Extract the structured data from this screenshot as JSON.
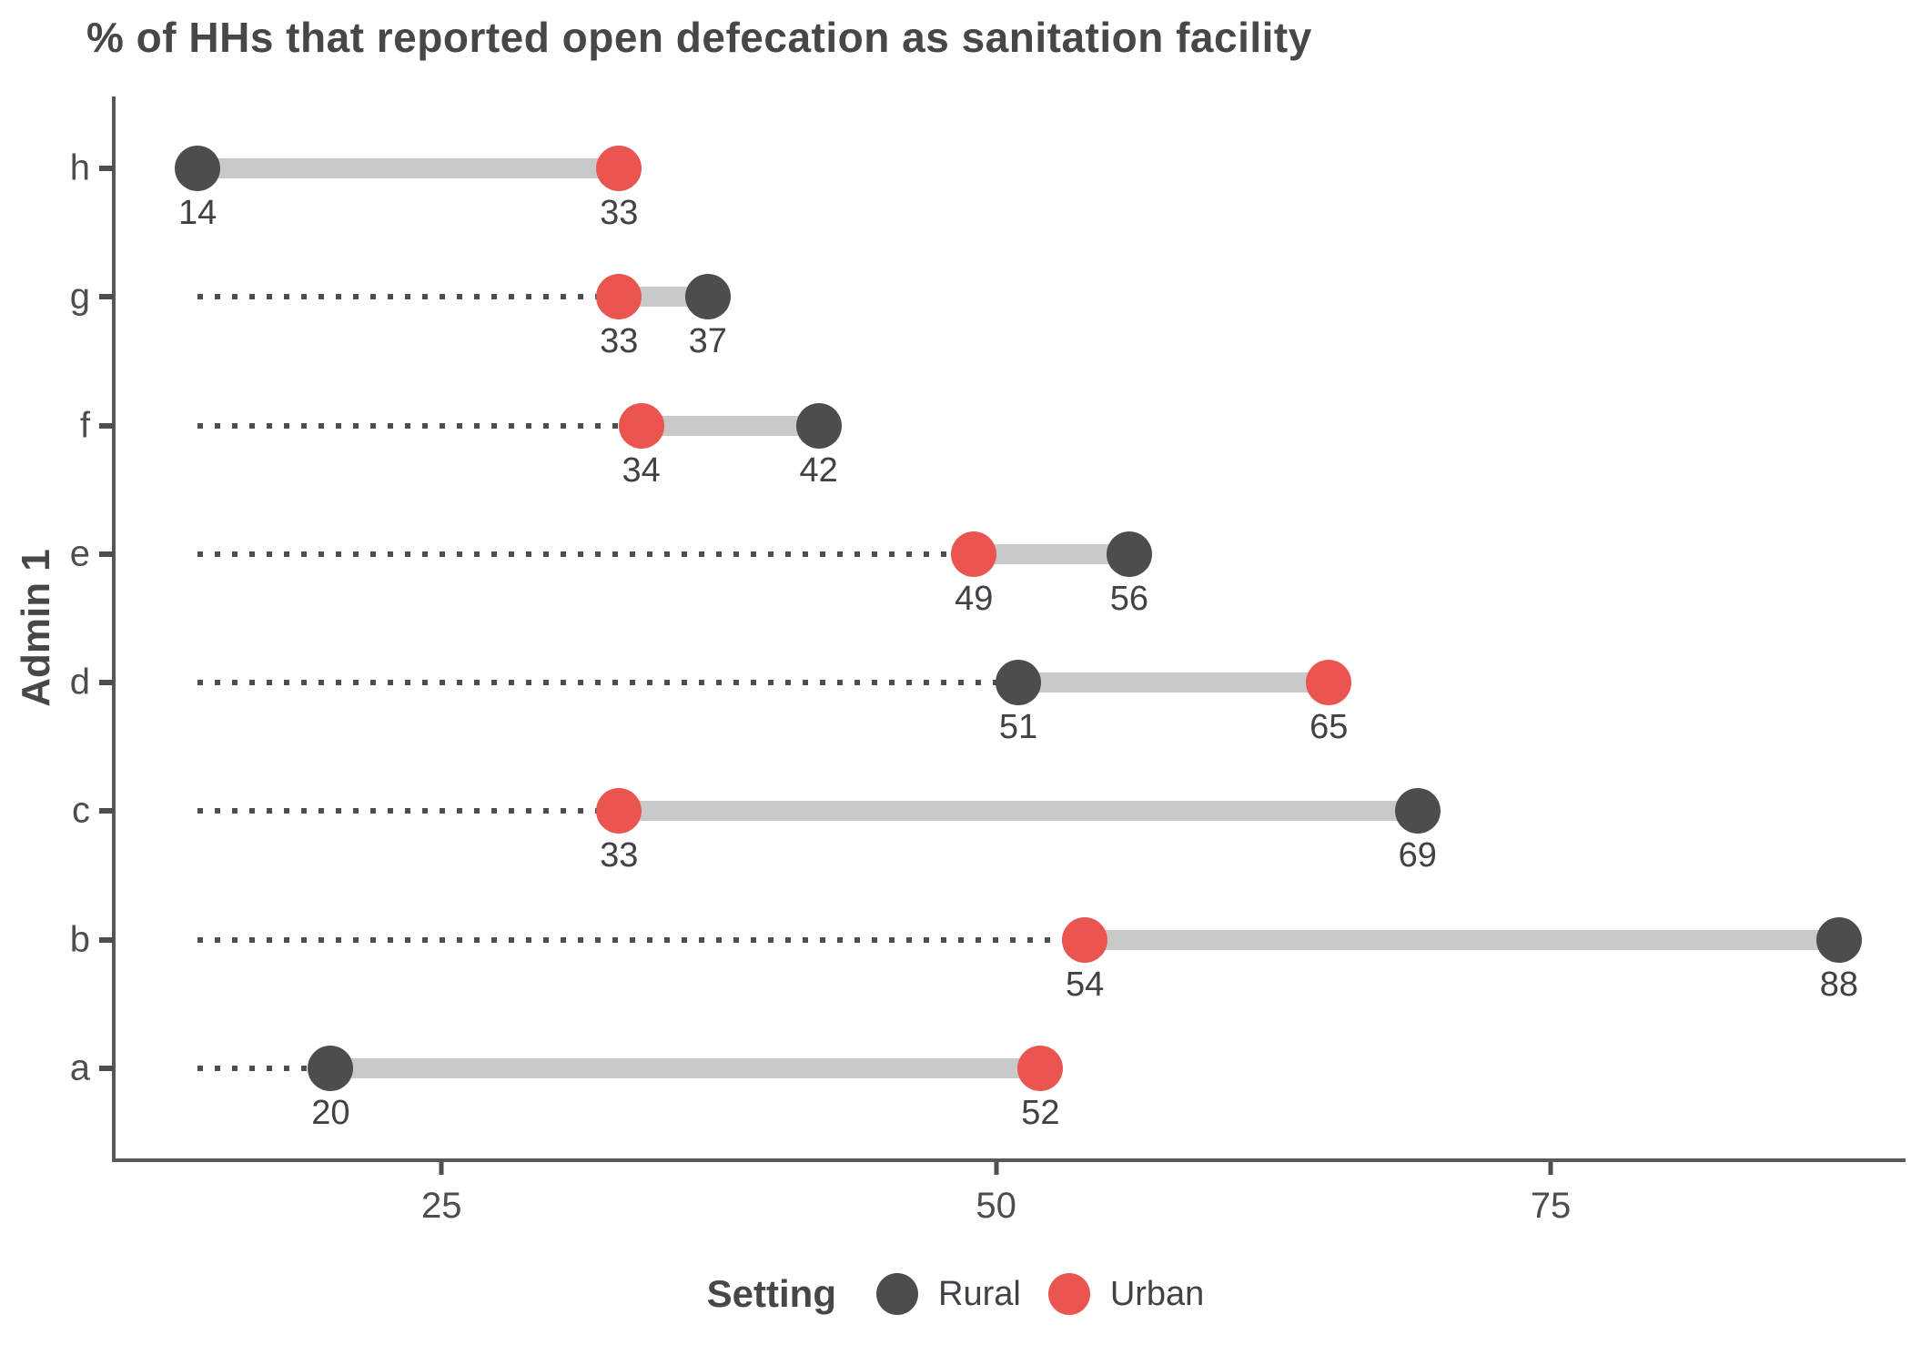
{
  "title": "% of HHs that reported open defecation as sanitation facility",
  "chart_data": {
    "type": "scatter",
    "variant": "dumbbell",
    "title": "% of HHs that reported open defecation as sanitation facility",
    "xlabel": "",
    "ylabel": "Admin 1",
    "categories": [
      "h",
      "g",
      "f",
      "e",
      "d",
      "c",
      "b",
      "a"
    ],
    "series": [
      {
        "name": "Rural",
        "color": "#4d4d4f"
      },
      {
        "name": "Urban",
        "color": "#ea5550"
      }
    ],
    "rows": [
      {
        "category": "h",
        "rural": 14,
        "urban": 33
      },
      {
        "category": "g",
        "rural": 37,
        "urban": 33
      },
      {
        "category": "f",
        "rural": 42,
        "urban": 34
      },
      {
        "category": "e",
        "rural": 56,
        "urban": 49
      },
      {
        "category": "d",
        "rural": 51,
        "urban": 65
      },
      {
        "category": "c",
        "rural": 69,
        "urban": 33
      },
      {
        "category": "b",
        "rural": 88,
        "urban": 54
      },
      {
        "category": "a",
        "rural": 20,
        "urban": 52
      }
    ],
    "x_ticks": [
      25,
      50,
      75
    ],
    "x_domain": [
      10.3,
      91.0
    ],
    "leader_start": 14,
    "grid": false,
    "legend": {
      "title": "Setting",
      "position": "bottom"
    },
    "colors": {
      "connector": "#c9c9c9",
      "leader": "#4e4e50",
      "axis": "#58585a",
      "title_text": "#474747",
      "label_text": "#414147"
    }
  }
}
